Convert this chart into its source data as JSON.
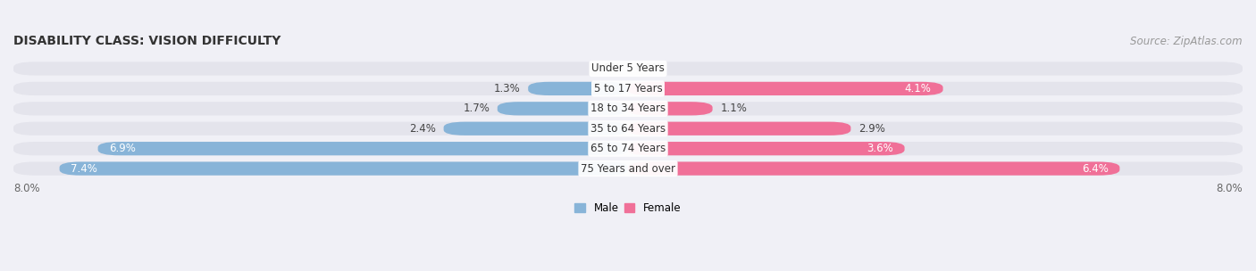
{
  "title": "DISABILITY CLASS: VISION DIFFICULTY",
  "source": "Source: ZipAtlas.com",
  "categories": [
    "Under 5 Years",
    "5 to 17 Years",
    "18 to 34 Years",
    "35 to 64 Years",
    "65 to 74 Years",
    "75 Years and over"
  ],
  "male_values": [
    0.0,
    1.3,
    1.7,
    2.4,
    6.9,
    7.4
  ],
  "female_values": [
    0.0,
    4.1,
    1.1,
    2.9,
    3.6,
    6.4
  ],
  "male_color": "#88b4d8",
  "female_color": "#f07098",
  "bar_bg_color": "#e4e4ec",
  "bg_color": "#f0f0f6",
  "max_val": 8.0,
  "title_fontsize": 10,
  "source_fontsize": 8.5,
  "label_fontsize": 8.5,
  "cat_fontsize": 8.5,
  "tick_fontsize": 8.5,
  "figsize": [
    14.06,
    3.04
  ],
  "dpi": 100
}
